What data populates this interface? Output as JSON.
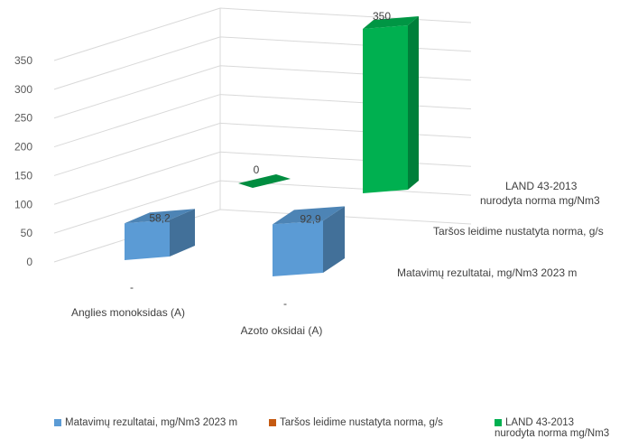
{
  "chart_data": {
    "type": "bar",
    "categories": [
      "Anglies monoksidas (A)",
      "Azoto oksidai (A)"
    ],
    "series": [
      {
        "name": "Matavimų rezultatai, mg/Nm3 2023 m",
        "values": [
          58.2,
          92.9
        ],
        "labels": [
          "58,2",
          "92,9"
        ],
        "color": "#5b9bd5"
      },
      {
        "name": "Taršos leidime nustatyta norma, g/s",
        "values": [
          null,
          null
        ],
        "labels": [
          "-",
          "-"
        ],
        "color": "#c55a11"
      },
      {
        "name": "LAND 43-2013\nnurodyta norma mg/Nm3",
        "values": [
          null,
          350
        ],
        "labels": [
          "",
          "350"
        ],
        "color": "#00b050"
      }
    ],
    "zero_label_bar": {
      "series_index": 2,
      "category_index": 0,
      "label": "0"
    },
    "ylim": [
      0,
      350
    ],
    "yticks": [
      0,
      50,
      100,
      150,
      200,
      250,
      300,
      350
    ],
    "grid": true,
    "legend_position": "bottom",
    "xlabel": "",
    "ylabel": "",
    "title": ""
  },
  "series_axis_labels": [
    "LAND 43-2013\nnurodyta norma mg/Nm3",
    "Taršos leidime nustatyta norma, g/s",
    "Matavimų rezultatai, mg/Nm3 2023 m"
  ]
}
